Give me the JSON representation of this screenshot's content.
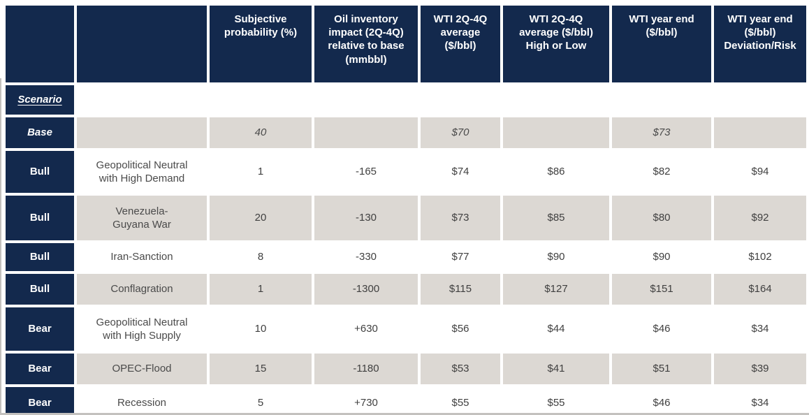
{
  "chart_data": {
    "type": "table",
    "section_label": "Scenario",
    "columns": [
      {
        "id": "scenario_type",
        "label": ""
      },
      {
        "id": "scenario_name",
        "label": ""
      },
      {
        "id": "subjective_probability_pct",
        "label": "Subjective\nprobability (%)"
      },
      {
        "id": "oil_inventory_impact_mmbbl",
        "label": "Oil inventory\nimpact (2Q-4Q)\nrelative to base\n(mmbbl)"
      },
      {
        "id": "wti_2q4q_avg",
        "label": "WTI 2Q-4Q\naverage\n($/bbl)"
      },
      {
        "id": "wti_2q4q_avg_high_low",
        "label": "WTI 2Q-4Q\naverage ($/bbl)\nHigh or Low"
      },
      {
        "id": "wti_year_end",
        "label": "WTI year end\n($/bbl)"
      },
      {
        "id": "wti_year_end_deviation_risk",
        "label": "WTI year end\n($/bbl)\nDeviation/Risk"
      }
    ],
    "rows": [
      {
        "scenario_type": "Base",
        "scenario_name": "",
        "subjective_probability_pct": "40",
        "oil_inventory_impact_mmbbl": "",
        "wti_2q4q_avg": "$70",
        "wti_2q4q_avg_high_low": "",
        "wti_year_end": "$73",
        "wti_year_end_deviation_risk": ""
      },
      {
        "scenario_type": "Bull",
        "scenario_name": "Geopolitical Neutral\nwith High Demand",
        "subjective_probability_pct": "1",
        "oil_inventory_impact_mmbbl": "-165",
        "wti_2q4q_avg": "$74",
        "wti_2q4q_avg_high_low": "$86",
        "wti_year_end": "$82",
        "wti_year_end_deviation_risk": "$94"
      },
      {
        "scenario_type": "Bull",
        "scenario_name": "Venezuela-\nGuyana War",
        "subjective_probability_pct": "20",
        "oil_inventory_impact_mmbbl": "-130",
        "wti_2q4q_avg": "$73",
        "wti_2q4q_avg_high_low": "$85",
        "wti_year_end": "$80",
        "wti_year_end_deviation_risk": "$92"
      },
      {
        "scenario_type": "Bull",
        "scenario_name": "Iran-Sanction",
        "subjective_probability_pct": "8",
        "oil_inventory_impact_mmbbl": "-330",
        "wti_2q4q_avg": "$77",
        "wti_2q4q_avg_high_low": "$90",
        "wti_year_end": "$90",
        "wti_year_end_deviation_risk": "$102"
      },
      {
        "scenario_type": "Bull",
        "scenario_name": "Conflagration",
        "subjective_probability_pct": "1",
        "oil_inventory_impact_mmbbl": "-1300",
        "wti_2q4q_avg": "$115",
        "wti_2q4q_avg_high_low": "$127",
        "wti_year_end": "$151",
        "wti_year_end_deviation_risk": "$164"
      },
      {
        "scenario_type": "Bear",
        "scenario_name": "Geopolitical Neutral\nwith High Supply",
        "subjective_probability_pct": "10",
        "oil_inventory_impact_mmbbl": "+630",
        "wti_2q4q_avg": "$56",
        "wti_2q4q_avg_high_low": "$44",
        "wti_year_end": "$46",
        "wti_year_end_deviation_risk": "$34"
      },
      {
        "scenario_type": "Bear",
        "scenario_name": "OPEC-Flood",
        "subjective_probability_pct": "15",
        "oil_inventory_impact_mmbbl": "-1180",
        "wti_2q4q_avg": "$53",
        "wti_2q4q_avg_high_low": "$41",
        "wti_year_end": "$51",
        "wti_year_end_deviation_risk": "$39"
      },
      {
        "scenario_type": "Bear",
        "scenario_name": "Recession",
        "subjective_probability_pct": "5",
        "oil_inventory_impact_mmbbl": "+730",
        "wti_2q4q_avg": "$55",
        "wti_2q4q_avg_high_low": "$55",
        "wti_year_end": "$46",
        "wti_year_end_deviation_risk": "$34"
      }
    ],
    "colors": {
      "header_bg": "#13294d",
      "header_text": "#ffffff",
      "row_shade": "#dcd8d3",
      "body_text": "#404040",
      "table_border": "#c3c1be"
    },
    "layout": {
      "grid": "off",
      "legend": "none"
    }
  }
}
